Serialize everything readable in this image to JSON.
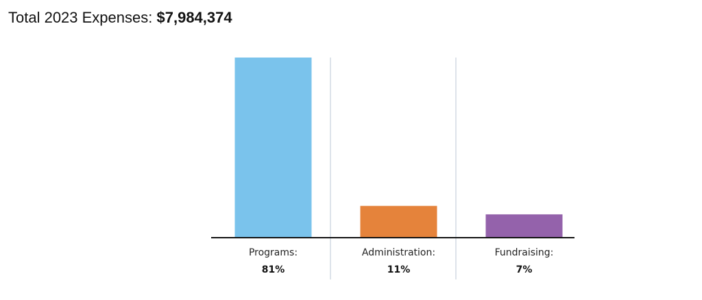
{
  "header": {
    "label": "Total 2023 Expenses:",
    "total": "$7,984,374"
  },
  "chart_data": {
    "type": "bar",
    "categories": [
      "Programs:",
      "Administration:",
      "Fundraising:"
    ],
    "values": [
      81,
      11,
      7
    ],
    "value_labels": [
      "81%",
      "11%",
      "7%"
    ],
    "colors": [
      "#7AC3EC",
      "#E5833B",
      "#9462AB"
    ],
    "ylim": [
      -4,
      81
    ],
    "grid": false,
    "legend": "none"
  }
}
